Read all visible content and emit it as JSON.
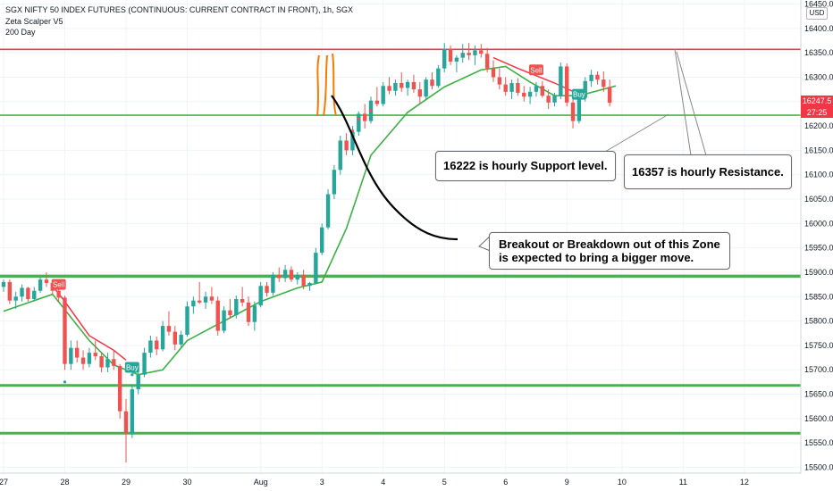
{
  "legend": {
    "symbol_line": "SGX NIFTY 50 INDEX FUTURES (CONTINUOUS: CURRENT CONTRACT IN FRONT), 1h, SGX",
    "indicator1": "Zeta Scalper V5",
    "indicator2": "200 Day"
  },
  "currency_button": "USD",
  "price_tags": {
    "last": "16247.5",
    "countdown": "27:25"
  },
  "annotations": {
    "support_note": "16222 is hourly Support level.",
    "resistance_note": "16357 is hourly Resistance.",
    "zone_note_line1": "Breakout or Breakdown out of this Zone",
    "zone_note_line2": "is expected to bring a bigger move."
  },
  "colors": {
    "bull": "#26a69a",
    "bear": "#ef5350",
    "support_line": "#4caf50",
    "resistance_line": "#f23645",
    "ma_line": "#3cb043",
    "signal_line": "#f23645",
    "last_price_tag": "#f23645",
    "drawing_orange": "#f57c00",
    "drawing_black": "#000000"
  },
  "chart_data": {
    "type": "candlestick",
    "y_axis": {
      "range": [
        15500,
        16450
      ],
      "ticks": [
        15500.0,
        15550.0,
        15600.0,
        15650.0,
        15700.0,
        15750.0,
        15800.0,
        15850.0,
        15900.0,
        15950.0,
        16000.0,
        16050.0,
        16100.0,
        16150.0,
        16200.0,
        16250.0,
        16300.0,
        16350.0,
        16400.0,
        16450.0
      ],
      "tick_labels": [
        "15500.0",
        "15550.0",
        "15600.0",
        "15650.0",
        "15700.0",
        "15750.0",
        "15800.0",
        "15850.0",
        "15900.0",
        "15950.0",
        "16000.0",
        "16050.0",
        "16100.0",
        "16150.0",
        "16200.0",
        "16250.0",
        "16300.0",
        "16350.0",
        "16400.0",
        "16450.0"
      ]
    },
    "x_axis": {
      "tick_labels": [
        "27",
        "28",
        "29",
        "30",
        "Aug",
        "3",
        "4",
        "5",
        "6",
        "9",
        "10",
        "11",
        "12"
      ],
      "tick_index": [
        0,
        10,
        20,
        30,
        42,
        52,
        62,
        72,
        82,
        92,
        101,
        111,
        121
      ]
    },
    "horizontal_levels": [
      {
        "value": 16357,
        "role": "resistance"
      },
      {
        "value": 16222,
        "role": "support"
      },
      {
        "value": 15892,
        "role": "zone"
      },
      {
        "value": 15668,
        "role": "support"
      },
      {
        "value": 15570,
        "role": "support"
      }
    ],
    "signals": [
      {
        "label": "Sell",
        "bar": 9,
        "value": 15875
      },
      {
        "label": "Buy",
        "bar": 21,
        "value": 15705
      },
      {
        "label": "Sell",
        "bar": 87,
        "value": 16315
      },
      {
        "label": "Buy",
        "bar": 94,
        "value": 16265
      }
    ],
    "candles": [
      [
        15870,
        15885,
        15860,
        15880
      ],
      [
        15880,
        15885,
        15835,
        15842
      ],
      [
        15842,
        15860,
        15825,
        15850
      ],
      [
        15850,
        15875,
        15840,
        15868
      ],
      [
        15868,
        15870,
        15840,
        15845
      ],
      [
        15845,
        15870,
        15840,
        15862
      ],
      [
        15862,
        15890,
        15858,
        15885
      ],
      [
        15885,
        15900,
        15870,
        15878
      ],
      [
        15878,
        15885,
        15855,
        15862
      ],
      [
        15862,
        15870,
        15840,
        15848
      ],
      [
        15848,
        15852,
        15700,
        15712
      ],
      [
        15712,
        15760,
        15700,
        15745
      ],
      [
        15745,
        15760,
        15715,
        15725
      ],
      [
        15725,
        15740,
        15700,
        15712
      ],
      [
        15712,
        15745,
        15705,
        15735
      ],
      [
        15735,
        15760,
        15720,
        15728
      ],
      [
        15728,
        15735,
        15695,
        15705
      ],
      [
        15705,
        15735,
        15695,
        15722
      ],
      [
        15722,
        15740,
        15700,
        15708
      ],
      [
        15708,
        15712,
        15600,
        15615
      ],
      [
        15615,
        15640,
        15510,
        15568
      ],
      [
        15568,
        15670,
        15560,
        15660
      ],
      [
        15660,
        15700,
        15650,
        15690
      ],
      [
        15690,
        15745,
        15685,
        15735
      ],
      [
        15735,
        15770,
        15725,
        15760
      ],
      [
        15760,
        15768,
        15730,
        15742
      ],
      [
        15742,
        15800,
        15738,
        15790
      ],
      [
        15790,
        15820,
        15770,
        15778
      ],
      [
        15778,
        15790,
        15740,
        15752
      ],
      [
        15752,
        15780,
        15745,
        15772
      ],
      [
        15772,
        15840,
        15768,
        15830
      ],
      [
        15830,
        15850,
        15815,
        15842
      ],
      [
        15842,
        15880,
        15835,
        15838
      ],
      [
        15838,
        15860,
        15825,
        15850
      ],
      [
        15850,
        15870,
        15835,
        15842
      ],
      [
        15842,
        15850,
        15770,
        15780
      ],
      [
        15780,
        15830,
        15775,
        15822
      ],
      [
        15822,
        15845,
        15805,
        15812
      ],
      [
        15812,
        15852,
        15805,
        15845
      ],
      [
        15845,
        15870,
        15830,
        15838
      ],
      [
        15838,
        15850,
        15790,
        15798
      ],
      [
        15798,
        15840,
        15780,
        15832
      ],
      [
        15832,
        15880,
        15828,
        15872
      ],
      [
        15872,
        15880,
        15850,
        15858
      ],
      [
        15858,
        15900,
        15852,
        15895
      ],
      [
        15895,
        15910,
        15880,
        15888
      ],
      [
        15888,
        15915,
        15880,
        15905
      ],
      [
        15905,
        15912,
        15880,
        15885
      ],
      [
        15885,
        15900,
        15875,
        15895
      ],
      [
        15895,
        15905,
        15865,
        15872
      ],
      [
        15872,
        15880,
        15862,
        15878
      ],
      [
        15878,
        15950,
        15875,
        15940
      ],
      [
        15940,
        16000,
        15935,
        15992
      ],
      [
        15992,
        16070,
        15988,
        16060
      ],
      [
        16060,
        16120,
        16050,
        16110
      ],
      [
        16110,
        16180,
        16100,
        16170
      ],
      [
        16170,
        16185,
        16140,
        16150
      ],
      [
        16150,
        16200,
        16140,
        16188
      ],
      [
        16188,
        16230,
        16180,
        16225
      ],
      [
        16225,
        16245,
        16195,
        16210
      ],
      [
        16210,
        16260,
        16205,
        16252
      ],
      [
        16252,
        16280,
        16240,
        16245
      ],
      [
        16245,
        16290,
        16240,
        16282
      ],
      [
        16282,
        16300,
        16265,
        16272
      ],
      [
        16272,
        16295,
        16262,
        16288
      ],
      [
        16288,
        16310,
        16270,
        16278
      ],
      [
        16278,
        16295,
        16262,
        16290
      ],
      [
        16290,
        16305,
        16268,
        16275
      ],
      [
        16275,
        16290,
        16245,
        16260
      ],
      [
        16260,
        16300,
        16255,
        16295
      ],
      [
        16295,
        16310,
        16275,
        16282
      ],
      [
        16282,
        16325,
        16278,
        16318
      ],
      [
        16318,
        16370,
        16310,
        16358
      ],
      [
        16358,
        16365,
        16325,
        16332
      ],
      [
        16332,
        16345,
        16310,
        16340
      ],
      [
        16340,
        16368,
        16330,
        16350
      ],
      [
        16350,
        16370,
        16335,
        16345
      ],
      [
        16345,
        16365,
        16325,
        16355
      ],
      [
        16355,
        16368,
        16340,
        16348
      ],
      [
        16348,
        16360,
        16310,
        16318
      ],
      [
        16318,
        16335,
        16290,
        16300
      ],
      [
        16300,
        16318,
        16275,
        16285
      ],
      [
        16285,
        16300,
        16262,
        16270
      ],
      [
        16270,
        16295,
        16255,
        16288
      ],
      [
        16288,
        16298,
        16262,
        16268
      ],
      [
        16268,
        16282,
        16250,
        16260
      ],
      [
        16260,
        16280,
        16245,
        16270
      ],
      [
        16270,
        16290,
        16260,
        16282
      ],
      [
        16282,
        16292,
        16258,
        16262
      ],
      [
        16262,
        16275,
        16235,
        16248
      ],
      [
        16248,
        16268,
        16240,
        16262
      ],
      [
        16262,
        16330,
        16255,
        16322
      ],
      [
        16322,
        16328,
        16240,
        16248
      ],
      [
        16248,
        16265,
        16195,
        16210
      ],
      [
        16210,
        16265,
        16205,
        16258
      ],
      [
        16258,
        16300,
        16250,
        16292
      ],
      [
        16292,
        16315,
        16280,
        16305
      ],
      [
        16305,
        16312,
        16285,
        16295
      ],
      [
        16295,
        16312,
        16270,
        16280
      ],
      [
        16280,
        16295,
        16240,
        16247.5
      ]
    ],
    "ma_points": [
      [
        0,
        15820
      ],
      [
        8,
        15855
      ],
      [
        14,
        15760
      ],
      [
        18,
        15710
      ],
      [
        22,
        15690
      ],
      [
        26,
        15700
      ],
      [
        30,
        15760
      ],
      [
        36,
        15800
      ],
      [
        42,
        15840
      ],
      [
        48,
        15868
      ],
      [
        52,
        15880
      ],
      [
        56,
        15990
      ],
      [
        60,
        16140
      ],
      [
        66,
        16228
      ],
      [
        72,
        16280
      ],
      [
        78,
        16315
      ],
      [
        82,
        16322
      ],
      [
        86,
        16290
      ],
      [
        90,
        16262
      ],
      [
        94,
        16262
      ],
      [
        100,
        16282
      ]
    ],
    "signal_line_points": [
      [
        8,
        15872
      ],
      [
        10,
        15840
      ],
      [
        14,
        15770
      ],
      [
        18,
        15740
      ],
      [
        20,
        15720
      ],
      [
        80,
        16340
      ],
      [
        84,
        16318
      ],
      [
        90,
        16288
      ],
      [
        94,
        16265
      ]
    ],
    "dots_red": [
      [
        56,
        16160
      ],
      [
        57,
        16190
      ],
      [
        58,
        16215
      ],
      [
        60,
        16232
      ]
    ],
    "dots_green": [
      [
        10,
        15675
      ],
      [
        21,
        15690
      ],
      [
        94,
        16245
      ]
    ]
  }
}
